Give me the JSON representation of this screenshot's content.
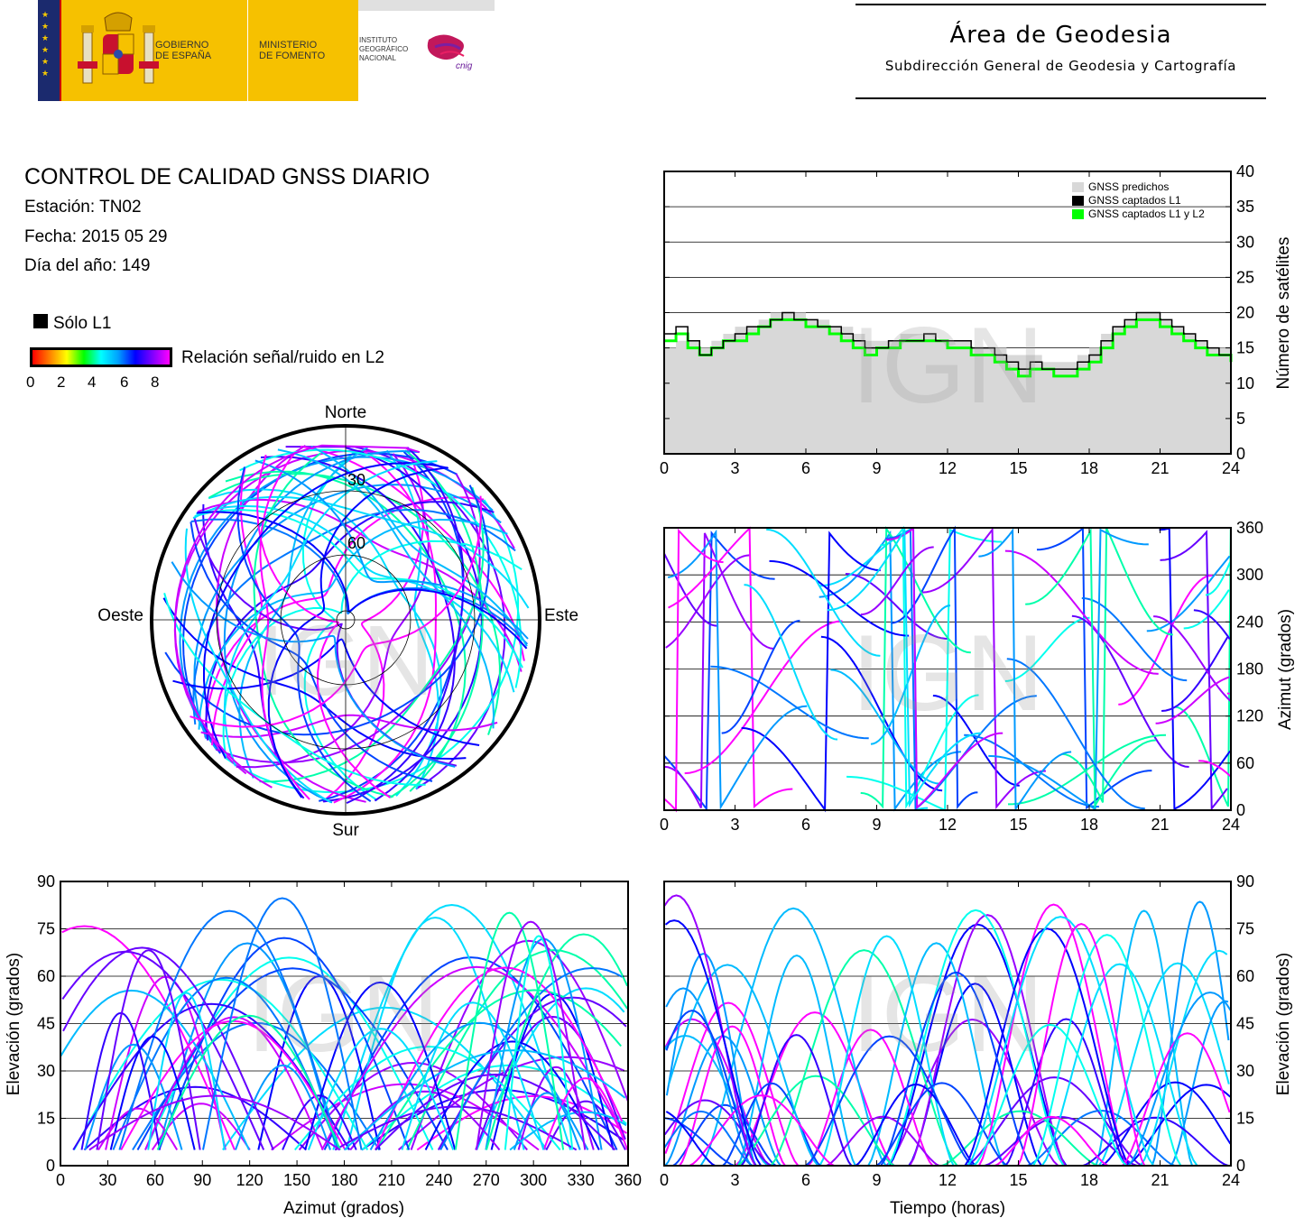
{
  "header": {
    "gov_line1": "GOBIERNO",
    "gov_line2": "DE ESPAÑA",
    "min_line1": "MINISTERIO",
    "min_line2": "DE FOMENTO",
    "inst_line1": "INSTITUTO",
    "inst_line2": "GEOGRÁFICO",
    "inst_line3": "NACIONAL",
    "cnig": "cnig",
    "area_title": "Área de Geodesia",
    "area_subtitle": "Subdirección General de Geodesia y Cartografía"
  },
  "info": {
    "title": "CONTROL DE CALIDAD GNSS DIARIO",
    "station": "Estación: TN02",
    "date": "Fecha: 2015 05 29",
    "doy": "Día del año: 149"
  },
  "legend": {
    "l1_only": "Sólo L1",
    "snr_label": "Relación señal/ruido en L2",
    "snr_ticks": [
      "0",
      "2",
      "4",
      "6",
      "8"
    ],
    "colorbar_colors": [
      "#ff0000",
      "#ff7f00",
      "#ffff00",
      "#00ff00",
      "#00ffff",
      "#00a0ff",
      "#0000ff",
      "#7f00ff",
      "#ff00ff"
    ]
  },
  "watermark": "IGN",
  "chart_data": [
    {
      "type": "area",
      "name": "satellite-count",
      "x_ticks": [
        "0",
        "3",
        "6",
        "9",
        "12",
        "15",
        "18",
        "21",
        "24"
      ],
      "y_ticks": [
        "0",
        "5",
        "10",
        "15",
        "20",
        "25",
        "30",
        "35",
        "40"
      ],
      "xlim": [
        0,
        24
      ],
      "ylim": [
        0,
        40
      ],
      "ylabel": "Número de satélites",
      "legend_entries": [
        "GNSS predichos",
        "GNSS captados L1",
        "GNSS captados L1 y L2"
      ],
      "colors": {
        "predicted": "#d8d8d8",
        "l1": "#000000",
        "l1l2": "#00ff00"
      },
      "x": [
        0,
        0.5,
        1,
        1.5,
        2,
        2.5,
        3,
        3.5,
        4,
        4.5,
        5,
        5.5,
        6,
        6.5,
        7,
        7.5,
        8,
        8.5,
        9,
        9.5,
        10,
        10.5,
        11,
        11.5,
        12,
        12.5,
        13,
        13.5,
        14,
        14.5,
        15,
        15.5,
        16,
        16.5,
        17,
        17.5,
        18,
        18.5,
        19,
        19.5,
        20,
        20.5,
        21,
        21.5,
        22,
        22.5,
        23,
        23.5,
        24
      ],
      "series": [
        {
          "name": "GNSS predichos",
          "values": [
            15,
            16,
            16,
            15,
            16,
            17,
            18,
            18,
            19,
            20,
            20,
            20,
            19,
            19,
            18,
            18,
            17,
            16,
            16,
            16,
            17,
            17,
            17,
            16,
            16,
            16,
            15,
            15,
            15,
            14,
            14,
            14,
            13,
            13,
            13,
            14,
            15,
            17,
            18,
            19,
            20,
            20,
            19,
            18,
            17,
            16,
            15,
            15,
            15
          ]
        },
        {
          "name": "GNSS captados L1",
          "values": [
            17,
            18,
            16,
            14,
            15,
            16,
            17,
            18,
            18,
            19,
            20,
            19,
            19,
            18,
            18,
            17,
            16,
            15,
            15,
            16,
            16,
            16,
            17,
            16,
            16,
            16,
            15,
            15,
            14,
            13,
            12,
            13,
            12,
            12,
            12,
            13,
            14,
            16,
            18,
            19,
            20,
            20,
            19,
            18,
            17,
            16,
            15,
            14,
            14
          ]
        },
        {
          "name": "GNSS captados L1 y L2",
          "values": [
            16,
            17,
            15,
            14,
            15,
            16,
            16,
            17,
            18,
            19,
            19,
            19,
            18,
            18,
            17,
            16,
            15,
            14,
            15,
            15,
            16,
            16,
            16,
            16,
            15,
            15,
            14,
            14,
            13,
            12,
            11,
            12,
            12,
            11,
            11,
            12,
            13,
            15,
            17,
            18,
            19,
            19,
            18,
            17,
            16,
            15,
            14,
            14,
            13
          ]
        }
      ]
    },
    {
      "type": "scatter",
      "name": "azimuth-vs-time",
      "x_ticks": [
        "0",
        "3",
        "6",
        "9",
        "12",
        "15",
        "18",
        "21",
        "24"
      ],
      "y_ticks": [
        "0",
        "60",
        "120",
        "180",
        "240",
        "300",
        "360"
      ],
      "xlim": [
        0,
        24
      ],
      "ylim": [
        0,
        360
      ],
      "ylabel": "Azimut (grados)"
    },
    {
      "type": "scatter",
      "name": "elevation-vs-azimuth",
      "x_ticks": [
        "0",
        "30",
        "60",
        "90",
        "120",
        "150",
        "180",
        "210",
        "240",
        "270",
        "300",
        "330",
        "360"
      ],
      "y_ticks": [
        "0",
        "15",
        "30",
        "45",
        "60",
        "75",
        "90"
      ],
      "xlim": [
        0,
        360
      ],
      "ylim": [
        0,
        90
      ],
      "xlabel": "Azimut (grados)",
      "ylabel": "Elevación (grados)"
    },
    {
      "type": "scatter",
      "name": "elevation-vs-time",
      "x_ticks": [
        "0",
        "3",
        "6",
        "9",
        "12",
        "15",
        "18",
        "21",
        "24"
      ],
      "y_ticks": [
        "0",
        "15",
        "30",
        "45",
        "60",
        "75",
        "90"
      ],
      "xlim": [
        0,
        24
      ],
      "ylim": [
        0,
        90
      ],
      "xlabel": "Tiempo (horas)",
      "ylabel": "Elevación (grados)"
    },
    {
      "type": "scatter",
      "name": "skyplot",
      "directions": {
        "n": "Norte",
        "s": "Sur",
        "e": "Este",
        "w": "Oeste"
      },
      "rings": [
        "30",
        "60"
      ]
    }
  ]
}
